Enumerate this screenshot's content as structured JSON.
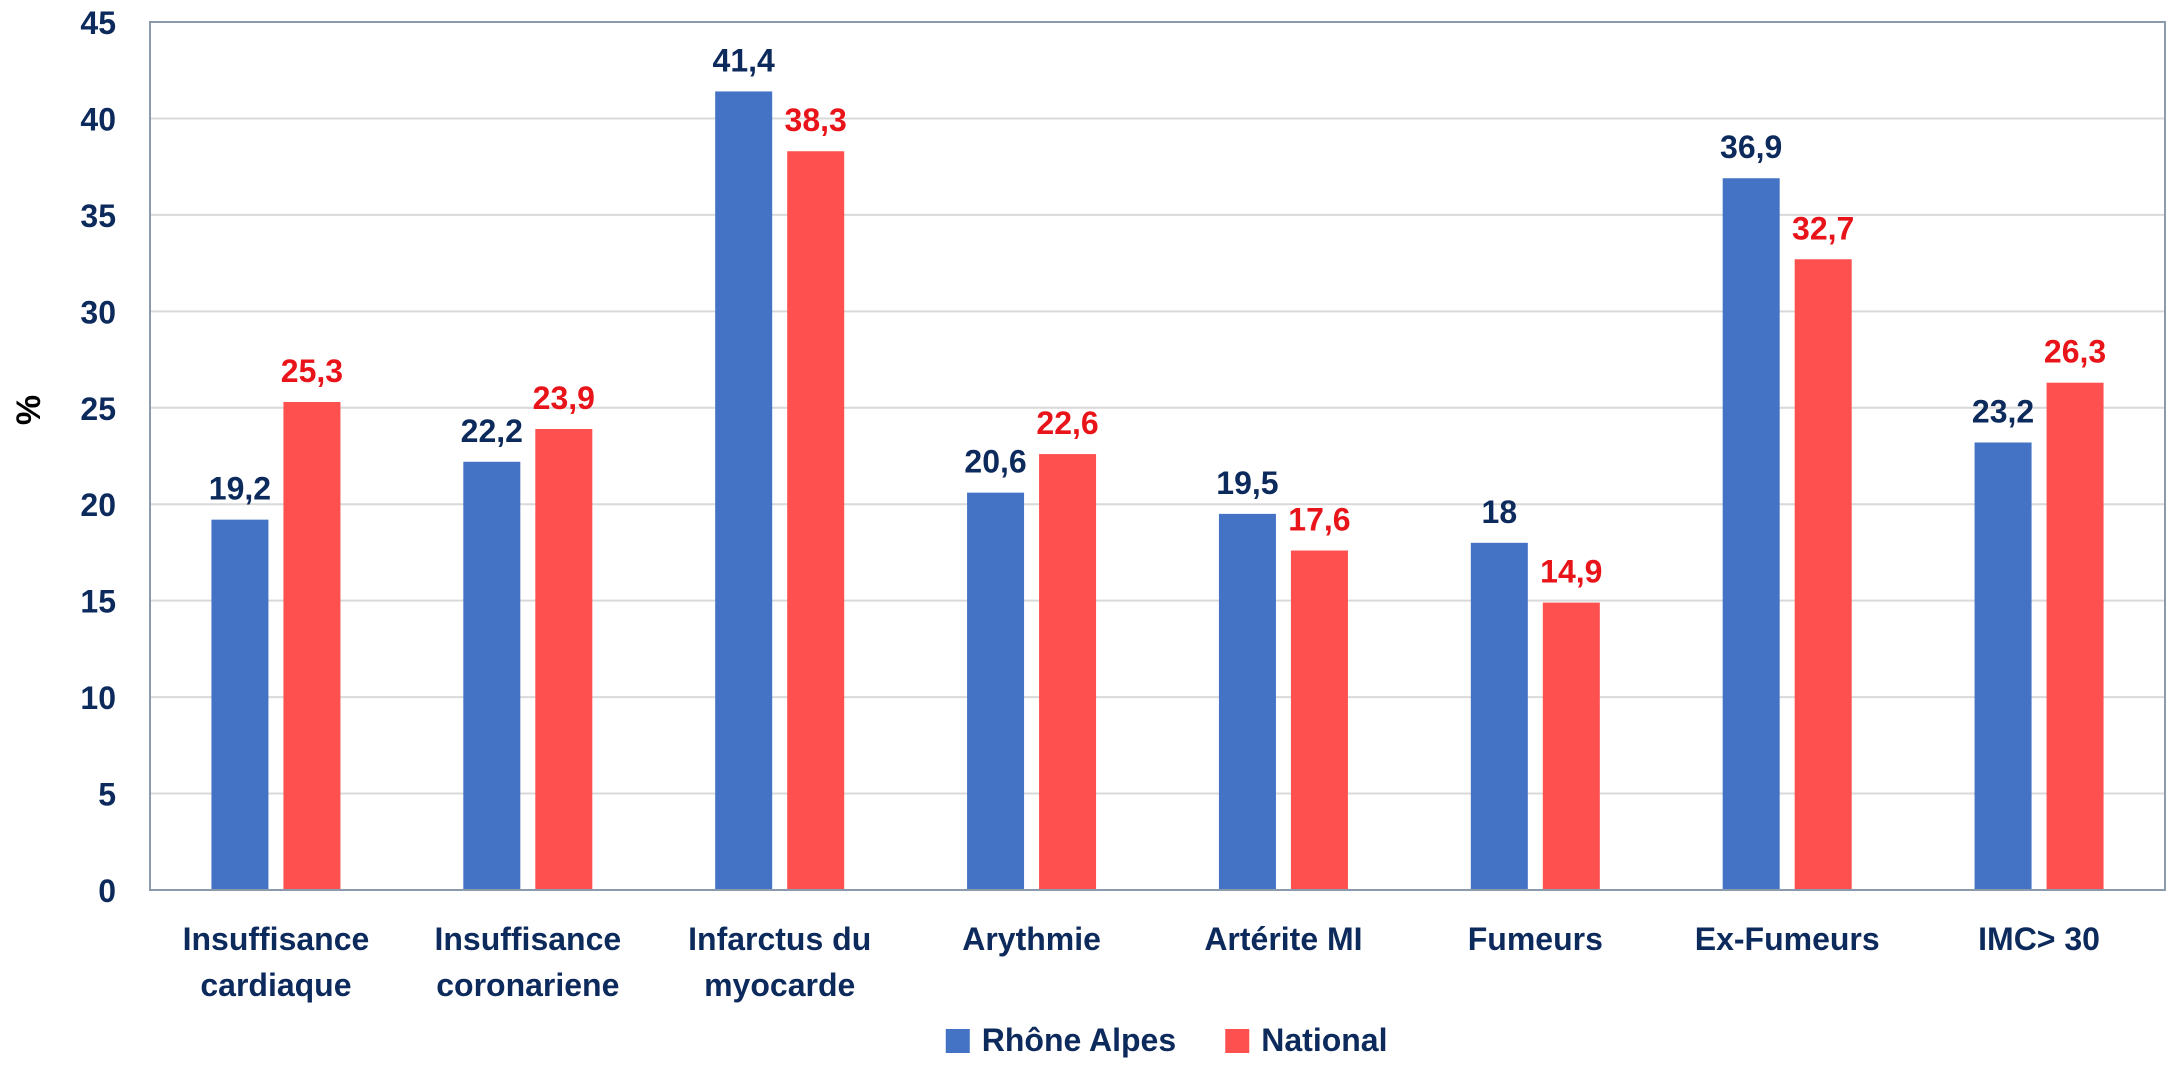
{
  "chart_data": {
    "type": "bar",
    "title": "",
    "xlabel": "",
    "ylabel": "%",
    "ylim": [
      0,
      45
    ],
    "yticks": [
      "0",
      "5",
      "10",
      "15",
      "20",
      "25",
      "30",
      "35",
      "40",
      "45"
    ],
    "grid": true,
    "legend_position": "bottom",
    "categories": [
      [
        "Insuffisance",
        "cardiaque"
      ],
      [
        "Insuffisance",
        "coronariene"
      ],
      [
        "Infarctus du",
        "myocarde"
      ],
      [
        "Arythmie"
      ],
      [
        "Artérite MI"
      ],
      [
        "Fumeurs"
      ],
      [
        "Ex-Fumeurs"
      ],
      [
        "IMC> 30"
      ]
    ],
    "series": [
      {
        "name": "Rhône Alpes",
        "color": "#4472C4",
        "label_color": "#0D2A5C",
        "values": [
          19.2,
          22.2,
          41.4,
          20.6,
          19.5,
          18,
          36.9,
          23.2
        ],
        "labels": [
          "19,2",
          "22,2",
          "41,4",
          "20,6",
          "19,5",
          "18",
          "36,9",
          "23,2"
        ]
      },
      {
        "name": "National",
        "color": "#FF5050",
        "label_color": "#E8141A",
        "values": [
          25.3,
          23.9,
          38.3,
          22.6,
          17.6,
          14.9,
          32.7,
          26.3
        ],
        "labels": [
          "25,3",
          "23,9",
          "38,3",
          "22,6",
          "17,6",
          "14,9",
          "32,7",
          "26,3"
        ]
      }
    ],
    "colors": {
      "axis": "#8C9AAE",
      "grid": "#D9D9D9",
      "text": "#0D2A5C"
    }
  }
}
